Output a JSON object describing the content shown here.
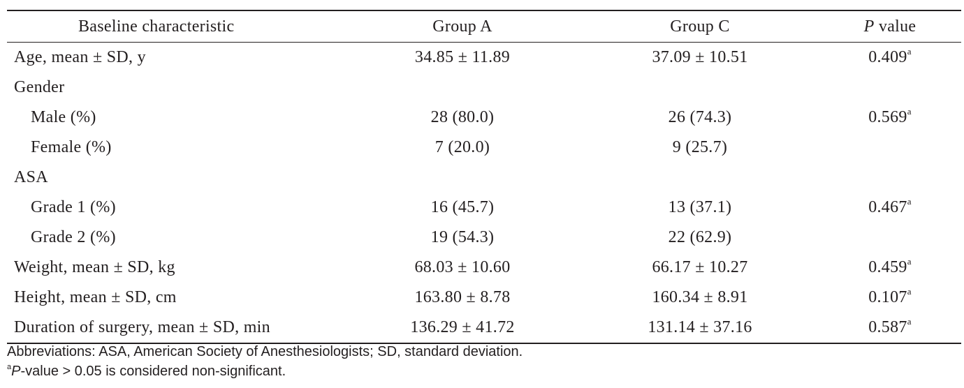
{
  "table": {
    "headers": {
      "characteristic": "Baseline characteristic",
      "group_a": "Group A",
      "group_c": "Group C",
      "p_italic": "P",
      "p_rest": " value"
    },
    "rows": [
      {
        "label": "Age, mean ± SD, y",
        "a": "34.85 ± 11.89",
        "c": "37.09 ± 10.51",
        "p": "0.409",
        "p_sup": "a"
      },
      {
        "label": "Gender",
        "a": "",
        "c": "",
        "p": "",
        "p_sup": ""
      },
      {
        "label": "Male (%)",
        "a": "28 (80.0)",
        "c": "26 (74.3)",
        "p": "0.569",
        "p_sup": "a"
      },
      {
        "label": "Female (%)",
        "a": "7 (20.0)",
        "c": "9 (25.7)",
        "p": "",
        "p_sup": ""
      },
      {
        "label": "ASA",
        "a": "",
        "c": "",
        "p": "",
        "p_sup": ""
      },
      {
        "label": "Grade 1 (%)",
        "a": "16 (45.7)",
        "c": "13 (37.1)",
        "p": "0.467",
        "p_sup": "a"
      },
      {
        "label": "Grade 2 (%)",
        "a": "19 (54.3)",
        "c": "22 (62.9)",
        "p": "",
        "p_sup": ""
      },
      {
        "label": "Weight, mean ± SD, kg",
        "a": "68.03 ± 10.60",
        "c": "66.17 ± 10.27",
        "p": "0.459",
        "p_sup": "a"
      },
      {
        "label": "Height, mean ± SD, cm",
        "a": "163.80 ± 8.78",
        "c": "160.34 ± 8.91",
        "p": "0.107",
        "p_sup": "a"
      },
      {
        "label": "Duration of surgery, mean ± SD, min",
        "a": "136.29 ± 41.72",
        "c": "131.14 ± 37.16",
        "p": "0.587",
        "p_sup": "a"
      }
    ]
  },
  "footnotes": {
    "abbreviations": "Abbreviations: ASA, American Society of Anesthesiologists; SD, standard deviation.",
    "note_sup": "a",
    "note_italic": "P",
    "note_rest": "-value > 0.05 is considered non-significant."
  }
}
